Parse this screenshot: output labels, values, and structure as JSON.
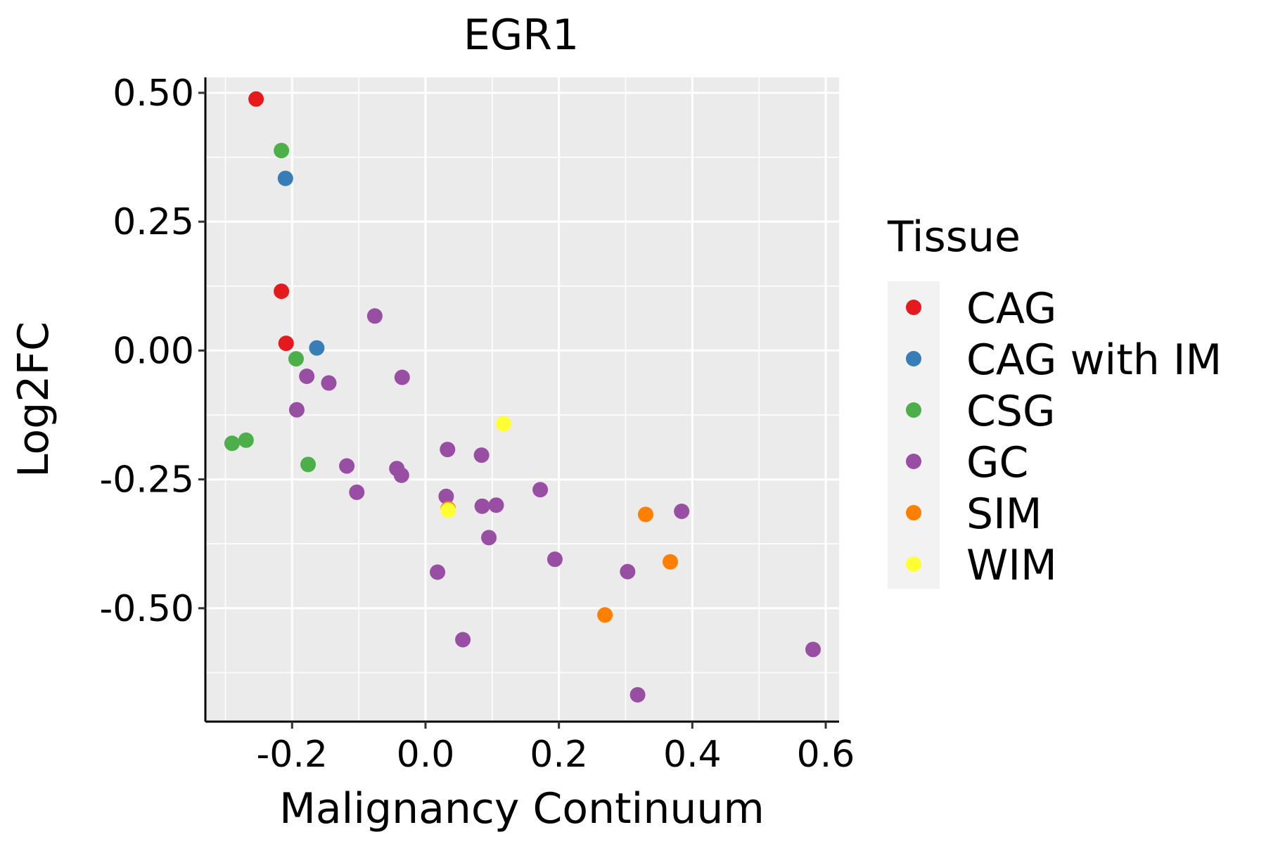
{
  "chart_data": {
    "type": "scatter",
    "title": "EGR1",
    "xlabel": "Malignancy Continuum",
    "ylabel": "Log2FC",
    "xlim": [
      -0.33,
      0.62
    ],
    "ylim": [
      -0.72,
      0.53
    ],
    "x_ticks": [
      -0.2,
      0.0,
      0.2,
      0.4,
      0.6
    ],
    "x_tick_labels": [
      "-0.2",
      "0.0",
      "0.2",
      "0.4",
      "0.6"
    ],
    "y_ticks": [
      -0.5,
      -0.25,
      0.0,
      0.25,
      0.5
    ],
    "y_tick_labels": [
      "-0.50",
      "-0.25",
      "0.00",
      "0.25",
      "0.50"
    ],
    "x_minor": [
      -0.3,
      -0.1,
      0.1,
      0.3,
      0.5
    ],
    "y_minor": [
      -0.625,
      -0.375,
      -0.125,
      0.125,
      0.375
    ],
    "grid": true,
    "legend": {
      "title": "Tissue",
      "position": "right",
      "entries": [
        {
          "name": "CAG",
          "color": "#e41a1c"
        },
        {
          "name": "CAG with IM",
          "color": "#377eb8"
        },
        {
          "name": "CSG",
          "color": "#4daf4a"
        },
        {
          "name": "GC",
          "color": "#984ea3"
        },
        {
          "name": "SIM",
          "color": "#ff7f00"
        },
        {
          "name": "WIM",
          "color": "#ffff33"
        }
      ]
    },
    "series": [
      {
        "name": "CAG",
        "color": "#e41a1c",
        "points": [
          {
            "x": -0.254,
            "y": 0.488
          },
          {
            "x": -0.216,
            "y": 0.115
          },
          {
            "x": -0.209,
            "y": 0.014
          }
        ]
      },
      {
        "name": "CAG with IM",
        "color": "#377eb8",
        "points": [
          {
            "x": -0.21,
            "y": 0.334
          },
          {
            "x": -0.163,
            "y": 0.005
          }
        ]
      },
      {
        "name": "CSG",
        "color": "#4daf4a",
        "points": [
          {
            "x": -0.216,
            "y": 0.388
          },
          {
            "x": -0.194,
            "y": -0.016
          },
          {
            "x": -0.29,
            "y": -0.18
          },
          {
            "x": -0.269,
            "y": -0.174
          },
          {
            "x": -0.176,
            "y": -0.221
          }
        ]
      },
      {
        "name": "GC",
        "color": "#984ea3",
        "points": [
          {
            "x": -0.076,
            "y": 0.067
          },
          {
            "x": -0.178,
            "y": -0.05
          },
          {
            "x": -0.145,
            "y": -0.063
          },
          {
            "x": -0.035,
            "y": -0.052
          },
          {
            "x": -0.193,
            "y": -0.115
          },
          {
            "x": -0.118,
            "y": -0.224
          },
          {
            "x": -0.043,
            "y": -0.229
          },
          {
            "x": -0.036,
            "y": -0.242
          },
          {
            "x": -0.103,
            "y": -0.275
          },
          {
            "x": 0.033,
            "y": -0.192
          },
          {
            "x": 0.084,
            "y": -0.203
          },
          {
            "x": 0.172,
            "y": -0.27
          },
          {
            "x": 0.031,
            "y": -0.283
          },
          {
            "x": 0.085,
            "y": -0.302
          },
          {
            "x": 0.106,
            "y": -0.3
          },
          {
            "x": 0.095,
            "y": -0.363
          },
          {
            "x": 0.384,
            "y": -0.312
          },
          {
            "x": 0.194,
            "y": -0.405
          },
          {
            "x": 0.303,
            "y": -0.429
          },
          {
            "x": 0.018,
            "y": -0.43
          },
          {
            "x": 0.056,
            "y": -0.561
          },
          {
            "x": 0.581,
            "y": -0.58
          },
          {
            "x": 0.318,
            "y": -0.668
          }
        ]
      },
      {
        "name": "SIM",
        "color": "#ff7f00",
        "points": [
          {
            "x": 0.034,
            "y": -0.307
          },
          {
            "x": 0.33,
            "y": -0.318
          },
          {
            "x": 0.367,
            "y": -0.41
          },
          {
            "x": 0.269,
            "y": -0.513
          }
        ]
      },
      {
        "name": "WIM",
        "color": "#ffff33",
        "points": [
          {
            "x": 0.117,
            "y": -0.142
          },
          {
            "x": 0.034,
            "y": -0.31
          }
        ]
      }
    ]
  }
}
